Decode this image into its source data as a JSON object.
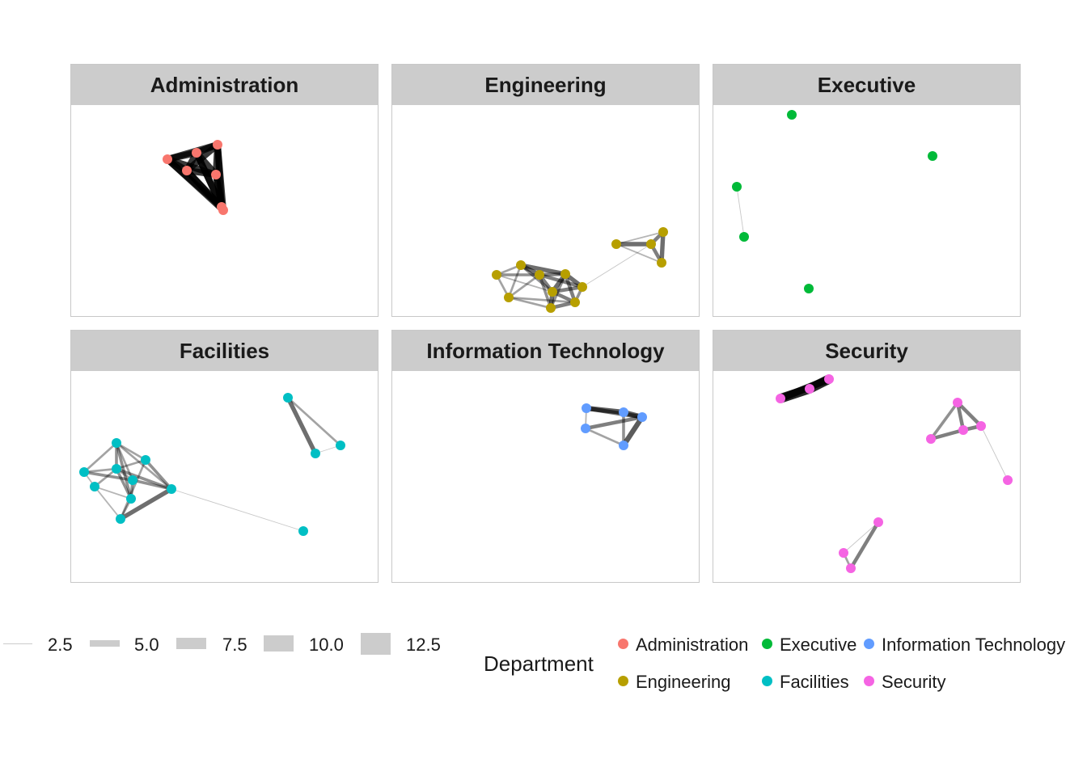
{
  "facets": [
    {
      "title": "Administration",
      "color": "#F8766D",
      "edges": [
        [
          0,
          1,
          9
        ],
        [
          0,
          2,
          9
        ],
        [
          0,
          3,
          9
        ],
        [
          0,
          4,
          9
        ],
        [
          0,
          5,
          9
        ],
        [
          0,
          6,
          9
        ],
        [
          1,
          2,
          9
        ],
        [
          1,
          3,
          9
        ],
        [
          1,
          4,
          9
        ],
        [
          1,
          5,
          9
        ],
        [
          1,
          6,
          9
        ],
        [
          2,
          3,
          9
        ],
        [
          2,
          4,
          9
        ],
        [
          2,
          5,
          9
        ],
        [
          2,
          6,
          9
        ],
        [
          3,
          4,
          9
        ],
        [
          3,
          5,
          9
        ],
        [
          3,
          6,
          9
        ],
        [
          4,
          5,
          9
        ],
        [
          4,
          6,
          9
        ],
        [
          5,
          6,
          9
        ]
      ]
    },
    {
      "title": "Engineering",
      "color": "#B79F00",
      "edges": [
        [
          0,
          1,
          3
        ],
        [
          0,
          6,
          3
        ],
        [
          0,
          2,
          4
        ],
        [
          1,
          2,
          6
        ],
        [
          1,
          3,
          6
        ],
        [
          1,
          4,
          4
        ],
        [
          1,
          6,
          3
        ],
        [
          2,
          3,
          5
        ],
        [
          2,
          4,
          5
        ],
        [
          2,
          5,
          5
        ],
        [
          2,
          7,
          4
        ],
        [
          3,
          4,
          6
        ],
        [
          3,
          5,
          6
        ],
        [
          3,
          8,
          5
        ],
        [
          4,
          5,
          5
        ],
        [
          4,
          7,
          6
        ],
        [
          4,
          8,
          5
        ],
        [
          5,
          8,
          4
        ],
        [
          6,
          7,
          3
        ],
        [
          6,
          8,
          3
        ],
        [
          7,
          8,
          5
        ],
        [
          2,
          6,
          3
        ],
        [
          3,
          7,
          4
        ],
        [
          0,
          4,
          2
        ],
        [
          5,
          10,
          1
        ],
        [
          9,
          10,
          6
        ],
        [
          9,
          11,
          2
        ],
        [
          9,
          12,
          2
        ],
        [
          10,
          11,
          5
        ],
        [
          10,
          12,
          5
        ],
        [
          11,
          12,
          6
        ]
      ]
    },
    {
      "title": "Executive",
      "color": "#00BA38",
      "edges": [
        [
          2,
          3,
          1
        ]
      ]
    },
    {
      "title": "Facilities",
      "color": "#00BFC4",
      "edges": [
        [
          0,
          1,
          3
        ],
        [
          0,
          2,
          3
        ],
        [
          0,
          3,
          4
        ],
        [
          0,
          6,
          4
        ],
        [
          0,
          7,
          3
        ],
        [
          1,
          3,
          3
        ],
        [
          1,
          7,
          4
        ],
        [
          1,
          8,
          3
        ],
        [
          2,
          3,
          3
        ],
        [
          2,
          4,
          2
        ],
        [
          2,
          5,
          4
        ],
        [
          3,
          5,
          3
        ],
        [
          3,
          6,
          4
        ],
        [
          3,
          7,
          4
        ],
        [
          4,
          6,
          2
        ],
        [
          4,
          8,
          2
        ],
        [
          5,
          6,
          4
        ],
        [
          5,
          7,
          4
        ],
        [
          6,
          8,
          3
        ],
        [
          7,
          8,
          6
        ],
        [
          3,
          4,
          3
        ],
        [
          0,
          5,
          3
        ],
        [
          9,
          10,
          6
        ],
        [
          9,
          11,
          3
        ],
        [
          10,
          11,
          1
        ],
        [
          7,
          12,
          1
        ]
      ]
    },
    {
      "title": "Information Technology",
      "color": "#619CFF",
      "edges": [
        [
          0,
          1,
          7
        ],
        [
          0,
          2,
          6
        ],
        [
          1,
          2,
          7
        ],
        [
          0,
          3,
          2
        ],
        [
          3,
          4,
          3
        ],
        [
          2,
          4,
          7
        ],
        [
          3,
          2,
          5
        ],
        [
          1,
          4,
          4
        ]
      ]
    },
    {
      "title": "Security",
      "color": "#F564E3",
      "edges": [
        [
          0,
          1,
          13
        ],
        [
          1,
          2,
          13
        ],
        [
          0,
          2,
          10
        ],
        [
          3,
          4,
          4
        ],
        [
          3,
          5,
          5
        ],
        [
          3,
          6,
          5
        ],
        [
          4,
          5,
          5
        ],
        [
          5,
          6,
          5
        ],
        [
          6,
          7,
          1
        ],
        [
          8,
          9,
          1
        ],
        [
          8,
          10,
          5
        ],
        [
          9,
          10,
          3
        ]
      ]
    }
  ],
  "legend": {
    "weight_labels": [
      "2.5",
      "5.0",
      "7.5",
      "10.0",
      "12.5"
    ],
    "department_title": "Department",
    "departments": [
      {
        "label": "Administration",
        "color": "#F8766D"
      },
      {
        "label": "Engineering",
        "color": "#B79F00"
      },
      {
        "label": "Executive",
        "color": "#00BA38"
      },
      {
        "label": "Facilities",
        "color": "#00BFC4"
      },
      {
        "label": "Information Technology",
        "color": "#619CFF"
      },
      {
        "label": "Security",
        "color": "#F564E3"
      }
    ]
  }
}
